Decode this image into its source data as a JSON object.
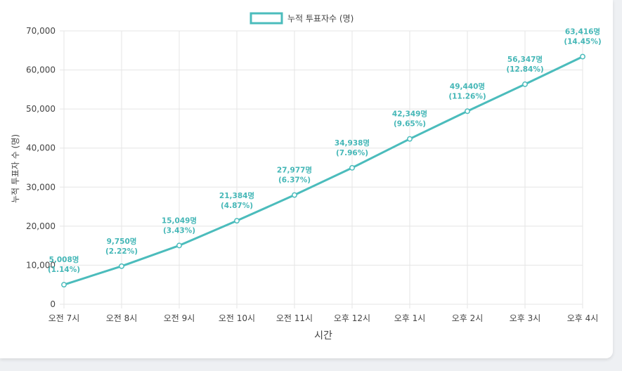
{
  "chart_data": {
    "type": "line",
    "categories": [
      "오전 7시",
      "오전 8시",
      "오전 9시",
      "오전 10시",
      "오전 11시",
      "오후 12시",
      "오후 1시",
      "오후 2시",
      "오후 3시",
      "오후 4시"
    ],
    "series": [
      {
        "name": "누적 투표자수 (명)",
        "values": [
          5008,
          9750,
          15049,
          21384,
          27977,
          34938,
          42349,
          49440,
          56347,
          63416
        ],
        "data_labels": [
          [
            "5,008명",
            "(1.14%)"
          ],
          [
            "9,750명",
            "(2.22%)"
          ],
          [
            "15,049명",
            "(3.43%)"
          ],
          [
            "21,384명",
            "(4.87%)"
          ],
          [
            "27,977명",
            "(6.37%)"
          ],
          [
            "34,938명",
            "(7.96%)"
          ],
          [
            "42,349명",
            "(9.65%)"
          ],
          [
            "49,440명",
            "(11.26%)"
          ],
          [
            "56,347명",
            "(12.84%)"
          ],
          [
            "63,416명",
            "(14.45%)"
          ]
        ]
      }
    ],
    "xlabel": "시간",
    "ylabel": "누적 투표자 수 (명)",
    "ylim": [
      0,
      70000
    ],
    "yticks": [
      0,
      10000,
      20000,
      30000,
      40000,
      50000,
      60000,
      70000
    ],
    "ytick_labels": [
      "0",
      "10,000",
      "20,000",
      "30,000",
      "40,000",
      "50,000",
      "60,000",
      "70,000"
    ],
    "grid": true,
    "legend": "top-center",
    "colors": {
      "line": "#4bbcbc",
      "label": "#45b7b7",
      "grid": "#e5e5e5"
    }
  }
}
